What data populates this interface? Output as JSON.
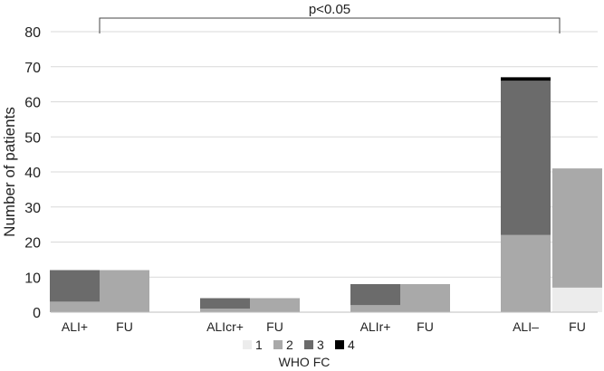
{
  "chart_data": {
    "type": "bar",
    "stacked": true,
    "categories": [
      "ALI+",
      "FU",
      "ALIcr+",
      "FU",
      "ALIr+",
      "FU",
      "ALI–",
      "FU"
    ],
    "series": [
      {
        "name": "1",
        "color": "#ececec",
        "values": [
          0,
          0,
          0,
          0,
          0,
          0,
          0,
          7
        ]
      },
      {
        "name": "2",
        "color": "#a9a9a9",
        "values": [
          3,
          12,
          1,
          4,
          2,
          8,
          22,
          34
        ]
      },
      {
        "name": "3",
        "color": "#6b6b6b",
        "values": [
          9,
          0,
          3,
          0,
          6,
          0,
          44,
          0
        ]
      },
      {
        "name": "4",
        "color": "#000000",
        "values": [
          0,
          0,
          0,
          0,
          0,
          0,
          1,
          0
        ]
      }
    ],
    "ylabel": "Number of patients",
    "ylim": [
      0,
      80
    ],
    "yticks": [
      0,
      10,
      20,
      30,
      40,
      50,
      60,
      70,
      80
    ],
    "grid": true,
    "legend_title": "WHO FC",
    "legend_position": "bottom",
    "annotation": {
      "text": "p<0.05",
      "from_category": 0,
      "to_category": 7
    }
  }
}
